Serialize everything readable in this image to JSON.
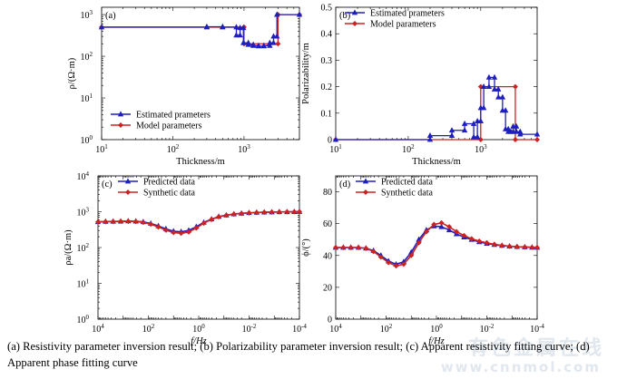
{
  "caption": "(a) Resistivity parameter inversion result; (b) Polarizability parameter inversion result; (c) Apparent resistivity fitting curve; (d) Apparent phase fitting curve",
  "watermark": "有色金属在线",
  "watermark_url": "www.cnnmol.com",
  "colors": {
    "estimated": "#1f1fbf",
    "model": "#cc2222"
  },
  "chart_data": [
    {
      "id": "a",
      "type": "line",
      "panel_label": "(a)",
      "xlabel": "Thickness/m",
      "ylabel": "ρ/(Ω·m)",
      "xscale": "log",
      "yscale": "log",
      "xlim": [
        10,
        6000
      ],
      "ylim": [
        1,
        1500
      ],
      "xticks": [
        {
          "v": 10,
          "b": "10",
          "e": "1"
        },
        {
          "v": 100,
          "b": "10",
          "e": "2"
        },
        {
          "v": 1000,
          "b": "10",
          "e": "3"
        }
      ],
      "yticks": [
        {
          "v": 1,
          "b": "10",
          "e": "0"
        },
        {
          "v": 10,
          "b": "10",
          "e": "1"
        },
        {
          "v": 100,
          "b": "10",
          "e": "2"
        },
        {
          "v": 1000,
          "b": "10",
          "e": "3"
        }
      ],
      "legend_position": "bottom-left",
      "series": [
        {
          "name": "Model parameters",
          "color": "#cc2222",
          "marker": "diamond",
          "x": [
            10,
            1000,
            1000,
            3000,
            3000,
            6000
          ],
          "y": [
            500,
            500,
            200,
            200,
            1000,
            1000
          ]
        },
        {
          "name": "Estimated prameters",
          "color": "#1f1fbf",
          "marker": "triangle",
          "x": [
            10,
            300,
            300,
            500,
            500,
            780,
            780,
            880,
            880,
            980,
            980,
            1150,
            1150,
            1350,
            1350,
            1600,
            1600,
            1900,
            1900,
            2300,
            2300,
            2600,
            2600,
            2900,
            2900,
            6000
          ],
          "y": [
            500,
            500,
            510,
            510,
            500,
            500,
            320,
            320,
            480,
            480,
            210,
            210,
            190,
            190,
            180,
            180,
            175,
            175,
            180,
            180,
            210,
            210,
            300,
            300,
            1000,
            1000
          ]
        }
      ]
    },
    {
      "id": "b",
      "type": "line",
      "panel_label": "(b)",
      "xlabel": "Thickness/m",
      "ylabel": "Polarizability/m",
      "xscale": "log",
      "yscale": "linear",
      "xlim": [
        10,
        6000
      ],
      "ylim": [
        0,
        0.5
      ],
      "xticks": [
        {
          "v": 10,
          "b": "10",
          "e": "1"
        },
        {
          "v": 100,
          "b": "10",
          "e": "2"
        },
        {
          "v": 1000,
          "b": "10",
          "e": "3"
        }
      ],
      "yticks": [
        {
          "v": 0,
          "t": "0"
        },
        {
          "v": 0.1,
          "t": "0.1"
        },
        {
          "v": 0.2,
          "t": "0.2"
        },
        {
          "v": 0.3,
          "t": "0.3"
        },
        {
          "v": 0.4,
          "t": "0.4"
        },
        {
          "v": 0.5,
          "t": "0.5"
        }
      ],
      "legend_position": "top-right",
      "series": [
        {
          "name": "Model parameters",
          "color": "#cc2222",
          "marker": "diamond",
          "x": [
            10,
            1000,
            1000,
            3000,
            3000,
            6000
          ],
          "y": [
            0,
            0,
            0.2,
            0.2,
            0,
            0
          ]
        },
        {
          "name": "Estimated prameters",
          "color": "#1f1fbf",
          "marker": "triangle",
          "x": [
            10,
            200,
            200,
            400,
            400,
            600,
            600,
            800,
            800,
            900,
            900,
            1000,
            1000,
            1100,
            1100,
            1300,
            1300,
            1550,
            1550,
            1750,
            1750,
            2000,
            2000,
            2200,
            2200,
            2400,
            2400,
            2600,
            2600,
            2800,
            2800,
            3100,
            3100,
            3500,
            3500,
            6000
          ],
          "y": [
            0,
            0,
            0.015,
            0.015,
            0.035,
            0.035,
            0.06,
            0.06,
            0.01,
            0.01,
            0.07,
            0.07,
            0.12,
            0.12,
            0.2,
            0.2,
            0.235,
            0.235,
            0.19,
            0.19,
            0.16,
            0.16,
            0.11,
            0.11,
            0.04,
            0.04,
            0.03,
            0.03,
            0.03,
            0.03,
            0.05,
            0.05,
            0.03,
            0.03,
            0.02,
            0.02
          ]
        }
      ]
    },
    {
      "id": "c",
      "type": "line",
      "panel_label": "(c)",
      "xlabel": "f/Hz",
      "ylabel": "ρa/(Ω·m)",
      "xscale": "log",
      "yscale": "log",
      "x_reversed": true,
      "xlim": [
        10000,
        0.0001
      ],
      "ylim": [
        1,
        10000
      ],
      "xticks": [
        {
          "v": 10000,
          "b": "10",
          "e": "4"
        },
        {
          "v": 100,
          "b": "10",
          "e": "2"
        },
        {
          "v": 1,
          "b": "10",
          "e": "0"
        },
        {
          "v": 0.01,
          "b": "10",
          "e": "-2"
        },
        {
          "v": 0.0001,
          "b": "10",
          "e": "-4"
        }
      ],
      "yticks": [
        {
          "v": 1,
          "b": "10",
          "e": "0"
        },
        {
          "v": 10,
          "b": "10",
          "e": "1"
        },
        {
          "v": 100,
          "b": "10",
          "e": "2"
        },
        {
          "v": 1000,
          "b": "10",
          "e": "3"
        },
        {
          "v": 10000,
          "b": "10",
          "e": "4"
        }
      ],
      "legend_position": "top-left",
      "series": [
        {
          "name": "Predicted data",
          "color": "#1f1fbf",
          "marker": "triangle",
          "x": [
            10000,
            5000,
            2500,
            1250,
            630,
            315,
            160,
            80,
            40,
            20,
            10,
            5,
            2.5,
            1.25,
            0.63,
            0.31,
            0.16,
            0.08,
            0.04,
            0.02,
            0.01,
            0.005,
            0.0025,
            0.00125,
            0.00063,
            0.00031,
            0.00016,
            0.0001
          ],
          "y": [
            520,
            530,
            535,
            540,
            545,
            540,
            520,
            470,
            400,
            330,
            285,
            275,
            300,
            380,
            500,
            620,
            730,
            800,
            860,
            900,
            930,
            950,
            965,
            975,
            985,
            990,
            995,
            1000
          ]
        },
        {
          "name": "Synthetic data",
          "color": "#cc2222",
          "marker": "diamond",
          "x": [
            10000,
            5000,
            2500,
            1250,
            630,
            315,
            160,
            80,
            40,
            20,
            10,
            5,
            2.5,
            1.25,
            0.63,
            0.31,
            0.16,
            0.08,
            0.04,
            0.02,
            0.01,
            0.005,
            0.0025,
            0.00125,
            0.00063,
            0.00031,
            0.00016,
            0.0001
          ],
          "y": [
            520,
            528,
            532,
            537,
            540,
            532,
            505,
            450,
            375,
            305,
            262,
            250,
            272,
            350,
            480,
            610,
            720,
            795,
            855,
            898,
            928,
            950,
            965,
            975,
            985,
            990,
            995,
            1000
          ]
        }
      ]
    },
    {
      "id": "d",
      "type": "line",
      "panel_label": "(d)",
      "xlabel": "f/Hz",
      "ylabel": "ϕ/(°)",
      "xscale": "log",
      "yscale": "linear",
      "x_reversed": true,
      "xlim": [
        10000,
        0.0001
      ],
      "ylim": [
        0,
        90
      ],
      "xticks": [
        {
          "v": 10000,
          "b": "10",
          "e": "4"
        },
        {
          "v": 100,
          "b": "10",
          "e": "2"
        },
        {
          "v": 1,
          "b": "10",
          "e": "0"
        },
        {
          "v": 0.01,
          "b": "10",
          "e": "-2"
        },
        {
          "v": 0.0001,
          "b": "10",
          "e": "-4"
        }
      ],
      "yticks": [
        {
          "v": 0,
          "t": "0"
        },
        {
          "v": 20,
          "t": "20"
        },
        {
          "v": 40,
          "t": "40"
        },
        {
          "v": 60,
          "t": "60"
        },
        {
          "v": 80,
          "t": "80"
        }
      ],
      "legend_position": "top-left",
      "series": [
        {
          "name": "Predicted data",
          "color": "#1f1fbf",
          "marker": "triangle",
          "x": [
            10000,
            5000,
            2500,
            1250,
            630,
            315,
            160,
            80,
            40,
            20,
            10,
            5,
            2.5,
            1.25,
            0.63,
            0.31,
            0.16,
            0.08,
            0.04,
            0.02,
            0.01,
            0.005,
            0.0025,
            0.00125,
            0.00063,
            0.00031,
            0.00016,
            0.0001
          ],
          "y": [
            45,
            45,
            45,
            45,
            44.5,
            43,
            40,
            36.5,
            34.5,
            36,
            42,
            50,
            56,
            58.5,
            58,
            56,
            53.5,
            51.5,
            50,
            48.5,
            47.5,
            46.8,
            46.2,
            45.8,
            45.5,
            45.3,
            45.1,
            45
          ]
        },
        {
          "name": "Synthetic data",
          "color": "#cc2222",
          "marker": "diamond",
          "x": [
            10000,
            5000,
            2500,
            1250,
            630,
            315,
            160,
            80,
            40,
            20,
            10,
            5,
            2.5,
            1.25,
            0.63,
            0.31,
            0.16,
            0.08,
            0.04,
            0.02,
            0.01,
            0.005,
            0.0025,
            0.00125,
            0.00063,
            0.00031,
            0.00016,
            0.0001
          ],
          "y": [
            45,
            45,
            45,
            45,
            44.5,
            42.5,
            39,
            35.5,
            33.5,
            34.5,
            40,
            48,
            55,
            59.5,
            60.5,
            58,
            55,
            52.5,
            50.5,
            49,
            48,
            47,
            46.3,
            45.8,
            45.5,
            45.3,
            45.1,
            45
          ]
        }
      ]
    }
  ]
}
